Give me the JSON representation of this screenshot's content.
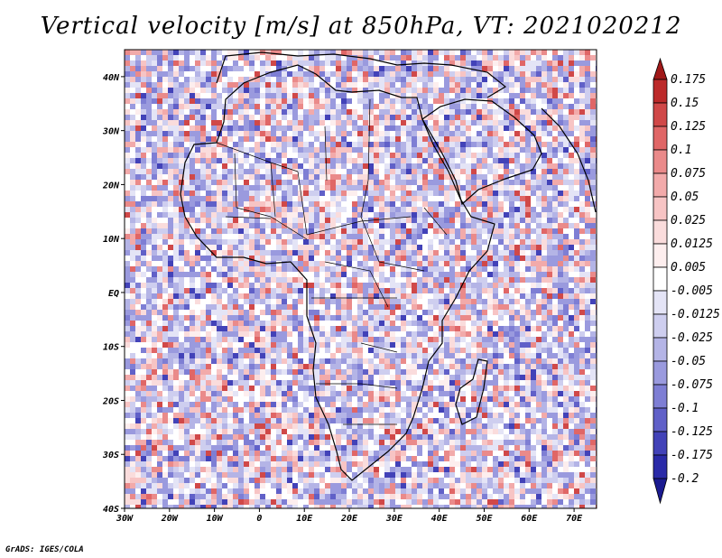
{
  "title": "Vertical velocity [m/s] at 850hPa, VT: 2021020212",
  "footer": "GrADS: IGES/COLA",
  "map": {
    "x_ticks": [
      "30W",
      "20W",
      "10W",
      "0",
      "10E",
      "20E",
      "30E",
      "40E",
      "50E",
      "60E",
      "70E"
    ],
    "y_ticks": [
      "40N",
      "30N",
      "20N",
      "10N",
      "EQ",
      "10S",
      "20S",
      "30S",
      "40S"
    ],
    "lon_range": [
      -30,
      75
    ],
    "lat_range": [
      -40,
      45
    ]
  },
  "colorbar": {
    "labels": [
      "0.175",
      "0.15",
      "0.125",
      "0.1",
      "0.075",
      "0.05",
      "0.025",
      "0.0125",
      "0.005",
      "-0.005",
      "-0.0125",
      "-0.025",
      "-0.05",
      "-0.075",
      "-0.1",
      "-0.125",
      "-0.175",
      "-0.2"
    ],
    "colors": [
      "#a01818",
      "#bc2a2a",
      "#d04848",
      "#e06666",
      "#ea8a8a",
      "#f2aaaa",
      "#f7c4c4",
      "#fadcdc",
      "#fdeeee",
      "#ffffff",
      "#e4e4f6",
      "#ceceef",
      "#b4b4e6",
      "#9a9ade",
      "#7e7ed4",
      "#6060c8",
      "#4242b8",
      "#2a2aa8",
      "#1a1a90"
    ]
  },
  "chart_data": {
    "type": "heatmap",
    "title": "Vertical velocity [m/s] at 850hPa, VT: 2021020212",
    "variable": "Vertical velocity",
    "units": "m/s",
    "level": "850hPa",
    "valid_time": "2021020212",
    "x_ticks": [
      "30W",
      "20W",
      "10W",
      "0",
      "10E",
      "20E",
      "30E",
      "40E",
      "50E",
      "60E",
      "70E"
    ],
    "y_ticks": [
      "40N",
      "30N",
      "20N",
      "10N",
      "EQ",
      "10S",
      "20S",
      "30S",
      "40S"
    ],
    "lon_range": [
      -30,
      75
    ],
    "lat_range": [
      -40,
      45
    ],
    "colorbar_levels": [
      0.175,
      0.15,
      0.125,
      0.1,
      0.075,
      0.05,
      0.025,
      0.0125,
      0.005,
      -0.005,
      -0.0125,
      -0.025,
      -0.05,
      -0.075,
      -0.1,
      -0.125,
      -0.175,
      -0.2
    ]
  }
}
